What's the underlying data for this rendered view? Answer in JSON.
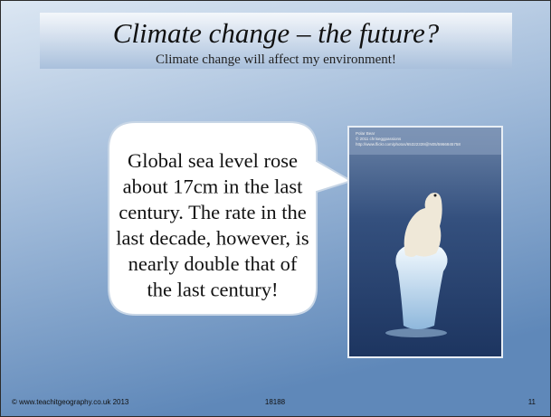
{
  "slide": {
    "title": "Climate change – the future?",
    "subtitle": "Climate change will affect my environment!",
    "bubble_lines": [
      "Global sea level rose",
      "about 17cm in the last",
      "century. The rate in the",
      "last decade, however, is",
      "nearly double that of",
      "the last century!"
    ],
    "photo_credit": [
      "Polar Bear",
      "© 2011 chriseggpassions",
      "http://www.flickr.com/photos/65322339@N05/5966845758"
    ],
    "footer": {
      "left": "© www.teachitgeography.co.uk 2013",
      "center": "18188",
      "right": "11"
    }
  }
}
